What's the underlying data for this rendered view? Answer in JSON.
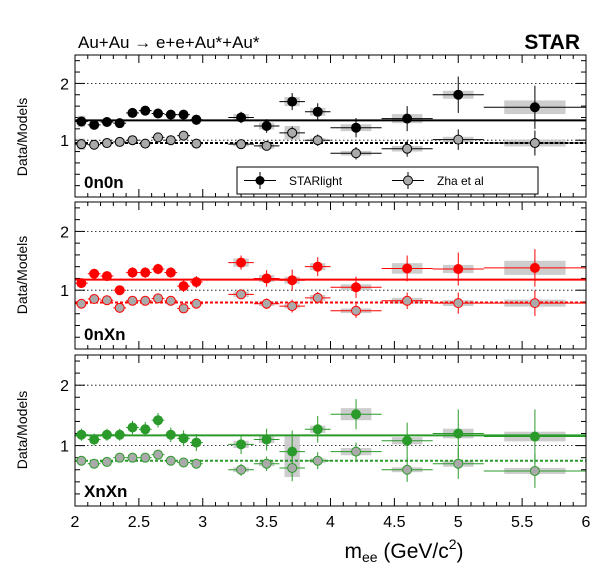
{
  "header": {
    "process": "Au+Au → e+e+Au*+Au*",
    "experiment": "STAR"
  },
  "legend": {
    "entries": [
      "STARlight",
      "Zha et al"
    ]
  },
  "x_axis": {
    "label_main": "m",
    "label_sub": "ee",
    "label_unit": " (GeV/c",
    "label_sup": "2",
    "label_close": ")"
  },
  "colors": {
    "0n0n": "#000000",
    "0nXn": "#ff0000",
    "XnXn": "#2a9a2a",
    "open_fill": "#aaaaaa",
    "sys_box": "#c8c8c8"
  },
  "chart_data": [
    {
      "type": "scatter",
      "title": "0n0n",
      "ylabel": "Data/Models",
      "xlim": [
        2,
        6
      ],
      "ylim": [
        0,
        2.5
      ],
      "yticks": [
        "1",
        "2"
      ],
      "xticks": [
        "2",
        "2.5",
        "3",
        "3.5",
        "4",
        "4.5",
        "5",
        "5.5",
        "6"
      ],
      "grid": "dotted horizontal lines at 1 and 2",
      "x": [
        2.05,
        2.15,
        2.25,
        2.35,
        2.45,
        2.55,
        2.65,
        2.75,
        2.85,
        2.95,
        3.3,
        3.5,
        3.7,
        3.9,
        4.2,
        4.6,
        5.0,
        5.6
      ],
      "xerr": [
        0.05,
        0.05,
        0.05,
        0.05,
        0.05,
        0.05,
        0.05,
        0.05,
        0.05,
        0.05,
        0.1,
        0.1,
        0.1,
        0.1,
        0.2,
        0.2,
        0.2,
        0.4
      ],
      "series": [
        {
          "name": "STARlight",
          "marker": "filled",
          "values": [
            1.33,
            1.27,
            1.32,
            1.3,
            1.48,
            1.52,
            1.47,
            1.45,
            1.45,
            1.36,
            1.4,
            1.25,
            1.68,
            1.5,
            1.22,
            1.38,
            1.8,
            1.58
          ],
          "errors": [
            0.07,
            0.07,
            0.07,
            0.07,
            0.08,
            0.08,
            0.08,
            0.08,
            0.08,
            0.09,
            0.1,
            0.12,
            0.15,
            0.15,
            0.17,
            0.22,
            0.32,
            0.38
          ],
          "sys": [
            0.1,
            0.06,
            0.06,
            0.05,
            0.06,
            0.06,
            0.05,
            0.06,
            0.06,
            0.08,
            0.06,
            0.06,
            0.08,
            0.07,
            0.06,
            0.08,
            0.07,
            0.12
          ],
          "fit": 1.35
        },
        {
          "name": "Zha et al",
          "marker": "open",
          "values": [
            0.93,
            0.92,
            0.95,
            0.97,
            1.0,
            0.94,
            1.05,
            1.0,
            1.08,
            0.94,
            0.93,
            0.9,
            1.13,
            1.0,
            0.77,
            0.85,
            1.01,
            0.95
          ],
          "errors": [
            0.05,
            0.05,
            0.05,
            0.05,
            0.06,
            0.06,
            0.06,
            0.06,
            0.06,
            0.07,
            0.07,
            0.08,
            0.11,
            0.1,
            0.11,
            0.14,
            0.18,
            0.22
          ],
          "sys": [
            0.1,
            0.05,
            0.05,
            0.04,
            0.05,
            0.04,
            0.04,
            0.04,
            0.05,
            0.06,
            0.04,
            0.05,
            0.12,
            0.04,
            0.04,
            0.05,
            0.05,
            0.06
          ],
          "fit": 0.95
        }
      ]
    },
    {
      "type": "scatter",
      "title": "0nXn",
      "ylabel": "Data/Models",
      "xlim": [
        2,
        6
      ],
      "ylim": [
        0,
        2.5
      ],
      "yticks": [
        "1",
        "2"
      ],
      "xticks": [
        "2",
        "2.5",
        "3",
        "3.5",
        "4",
        "4.5",
        "5",
        "5.5",
        "6"
      ],
      "grid": "dotted horizontal lines at 1 and 2",
      "x": [
        2.05,
        2.15,
        2.25,
        2.35,
        2.45,
        2.55,
        2.65,
        2.75,
        2.85,
        2.95,
        3.3,
        3.5,
        3.7,
        3.9,
        4.2,
        4.6,
        5.0,
        5.6
      ],
      "xerr": [
        0.05,
        0.05,
        0.05,
        0.05,
        0.05,
        0.05,
        0.05,
        0.05,
        0.05,
        0.05,
        0.1,
        0.1,
        0.1,
        0.1,
        0.2,
        0.2,
        0.2,
        0.4
      ],
      "series": [
        {
          "name": "STARlight",
          "marker": "filled",
          "values": [
            1.12,
            1.28,
            1.24,
            1.0,
            1.3,
            1.3,
            1.36,
            1.3,
            1.07,
            1.14,
            1.47,
            1.2,
            1.17,
            1.4,
            1.05,
            1.37,
            1.36,
            1.38
          ],
          "errors": [
            0.08,
            0.08,
            0.08,
            0.08,
            0.09,
            0.09,
            0.09,
            0.09,
            0.1,
            0.1,
            0.12,
            0.14,
            0.18,
            0.16,
            0.18,
            0.22,
            0.28,
            0.32
          ],
          "sys": [
            0.05,
            0.05,
            0.05,
            0.05,
            0.05,
            0.05,
            0.05,
            0.05,
            0.06,
            0.05,
            0.07,
            0.06,
            0.06,
            0.06,
            0.05,
            0.09,
            0.07,
            0.12
          ],
          "fit": 1.18
        },
        {
          "name": "Zha et al",
          "marker": "open",
          "values": [
            0.77,
            0.85,
            0.83,
            0.7,
            0.82,
            0.82,
            0.86,
            0.82,
            0.69,
            0.77,
            0.93,
            0.77,
            0.73,
            0.87,
            0.65,
            0.82,
            0.78,
            0.78
          ],
          "errors": [
            0.05,
            0.05,
            0.05,
            0.05,
            0.06,
            0.06,
            0.06,
            0.06,
            0.06,
            0.07,
            0.07,
            0.09,
            0.11,
            0.1,
            0.12,
            0.14,
            0.18,
            0.22
          ],
          "sys": [
            0.04,
            0.04,
            0.04,
            0.04,
            0.04,
            0.04,
            0.04,
            0.04,
            0.04,
            0.04,
            0.05,
            0.04,
            0.04,
            0.05,
            0.04,
            0.05,
            0.05,
            0.06
          ],
          "fit": 0.79
        }
      ]
    },
    {
      "type": "scatter",
      "title": "XnXn",
      "ylabel": "Data/Models",
      "xlim": [
        2,
        6
      ],
      "ylim": [
        0,
        2.5
      ],
      "yticks": [
        "1",
        "2"
      ],
      "xticks": [
        "2",
        "2.5",
        "3",
        "3.5",
        "4",
        "4.5",
        "5",
        "5.5",
        "6"
      ],
      "grid": "dotted horizontal lines at 1 and 2",
      "x": [
        2.05,
        2.15,
        2.25,
        2.35,
        2.45,
        2.55,
        2.65,
        2.75,
        2.85,
        2.95,
        3.3,
        3.5,
        3.7,
        3.9,
        4.2,
        4.6,
        5.0,
        5.6
      ],
      "xerr": [
        0.05,
        0.05,
        0.05,
        0.05,
        0.05,
        0.05,
        0.05,
        0.05,
        0.05,
        0.05,
        0.1,
        0.1,
        0.1,
        0.1,
        0.2,
        0.2,
        0.2,
        0.4
      ],
      "series": [
        {
          "name": "STARlight",
          "marker": "filled",
          "values": [
            1.18,
            1.1,
            1.18,
            1.18,
            1.3,
            1.27,
            1.42,
            1.18,
            1.12,
            1.05,
            1.02,
            1.1,
            0.9,
            1.27,
            1.52,
            1.08,
            1.2,
            1.15
          ],
          "errors": [
            0.1,
            0.1,
            0.1,
            0.1,
            0.11,
            0.12,
            0.12,
            0.12,
            0.13,
            0.14,
            0.16,
            0.18,
            0.35,
            0.22,
            0.25,
            0.3,
            0.4,
            0.45
          ],
          "sys": [
            0.06,
            0.05,
            0.05,
            0.05,
            0.06,
            0.06,
            0.06,
            0.06,
            0.06,
            0.06,
            0.06,
            0.06,
            0.25,
            0.06,
            0.1,
            0.06,
            0.08,
            0.08
          ],
          "fit": 1.17
        },
        {
          "name": "Zha et al",
          "marker": "open",
          "values": [
            0.75,
            0.7,
            0.73,
            0.8,
            0.8,
            0.8,
            0.85,
            0.75,
            0.72,
            0.7,
            0.6,
            0.7,
            0.63,
            0.75,
            0.9,
            0.6,
            0.7,
            0.58
          ],
          "errors": [
            0.06,
            0.06,
            0.06,
            0.06,
            0.07,
            0.07,
            0.07,
            0.07,
            0.08,
            0.08,
            0.1,
            0.12,
            0.22,
            0.14,
            0.15,
            0.2,
            0.25,
            0.28
          ],
          "sys": [
            0.04,
            0.04,
            0.04,
            0.04,
            0.04,
            0.04,
            0.04,
            0.04,
            0.04,
            0.04,
            0.04,
            0.04,
            0.15,
            0.04,
            0.06,
            0.04,
            0.05,
            0.05
          ],
          "fit": 0.75
        }
      ]
    }
  ]
}
